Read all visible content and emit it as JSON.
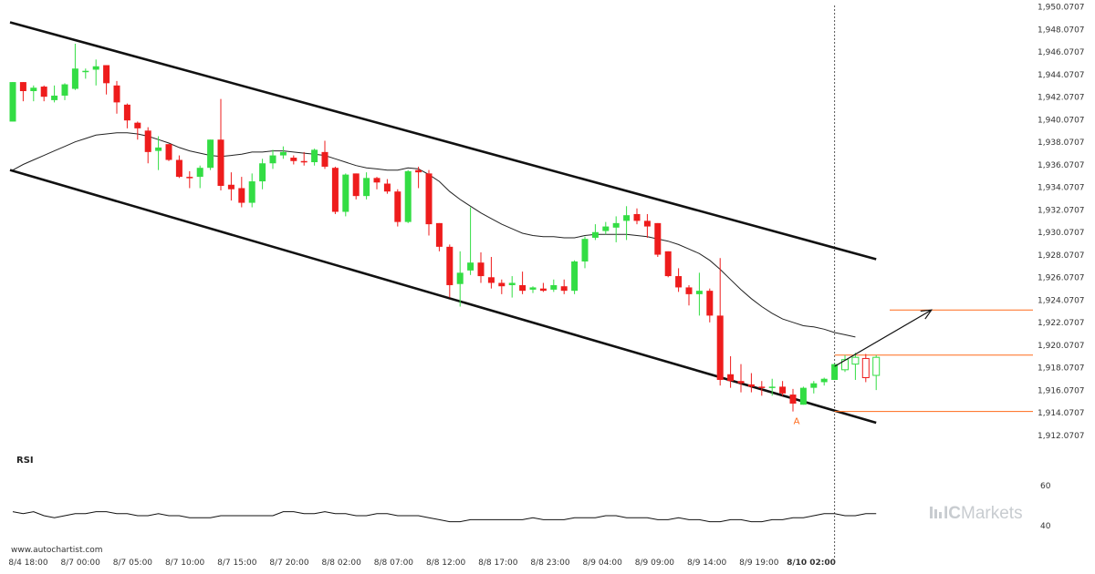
{
  "chart_data": {
    "type": "candlestick",
    "source": "www.autochartist.com",
    "brand": "ICMarkets",
    "price_axis": {
      "range": [
        1911.0,
        1951.0
      ],
      "ticks": [
        "1,912.0707",
        "1,914.0707",
        "1,916.0707",
        "1,918.0707",
        "1,920.0707",
        "1,922.0707",
        "1,924.0707",
        "1,926.0707",
        "1,928.0707",
        "1,930.0707",
        "1,932.0707",
        "1,934.0707",
        "1,936.0707",
        "1,938.0707",
        "1,940.0707",
        "1,942.0707",
        "1,944.0707",
        "1,946.0707",
        "1,948.0707",
        "1,950.0707"
      ]
    },
    "time_axis": {
      "labels": [
        "8/4 18:00",
        "8/7 00:00",
        "8/7 05:00",
        "8/7 10:00",
        "8/7 15:00",
        "8/7 20:00",
        "8/8 02:00",
        "8/8 07:00",
        "8/8 12:00",
        "8/8 17:00",
        "8/8 23:00",
        "8/9 04:00",
        "8/9 09:00",
        "8/9 14:00",
        "8/9 19:00",
        "8/10 02:00"
      ],
      "highlighted": "8/10 02:00"
    },
    "candles": [
      {
        "o": 1939.9,
        "h": 1943.4,
        "l": 1939.9,
        "c": 1943.4
      },
      {
        "o": 1943.4,
        "h": 1943.4,
        "l": 1941.7,
        "c": 1942.6
      },
      {
        "o": 1942.6,
        "h": 1943.1,
        "l": 1941.7,
        "c": 1942.9
      },
      {
        "o": 1943.0,
        "h": 1943.1,
        "l": 1941.7,
        "c": 1942.1
      },
      {
        "o": 1941.8,
        "h": 1943.1,
        "l": 1941.6,
        "c": 1942.2
      },
      {
        "o": 1942.2,
        "h": 1943.3,
        "l": 1941.8,
        "c": 1943.2
      },
      {
        "o": 1942.8,
        "h": 1946.8,
        "l": 1942.7,
        "c": 1944.6
      },
      {
        "o": 1944.4,
        "h": 1944.6,
        "l": 1943.7,
        "c": 1944.4
      },
      {
        "o": 1944.5,
        "h": 1945.4,
        "l": 1943.1,
        "c": 1944.8
      },
      {
        "o": 1944.9,
        "h": 1944.9,
        "l": 1942.3,
        "c": 1943.3
      },
      {
        "o": 1943.1,
        "h": 1943.5,
        "l": 1940.6,
        "c": 1941.6
      },
      {
        "o": 1941.4,
        "h": 1941.5,
        "l": 1939.3,
        "c": 1940.0
      },
      {
        "o": 1939.8,
        "h": 1939.9,
        "l": 1938.3,
        "c": 1939.3
      },
      {
        "o": 1939.1,
        "h": 1939.4,
        "l": 1936.2,
        "c": 1937.2
      },
      {
        "o": 1937.3,
        "h": 1938.6,
        "l": 1935.6,
        "c": 1937.6
      },
      {
        "o": 1937.9,
        "h": 1937.9,
        "l": 1936.4,
        "c": 1936.5
      },
      {
        "o": 1936.5,
        "h": 1936.9,
        "l": 1934.9,
        "c": 1935.0
      },
      {
        "o": 1935.0,
        "h": 1935.5,
        "l": 1934.0,
        "c": 1934.9
      },
      {
        "o": 1935.0,
        "h": 1936.0,
        "l": 1934.0,
        "c": 1935.8
      },
      {
        "o": 1935.8,
        "h": 1938.3,
        "l": 1935.6,
        "c": 1938.3
      },
      {
        "o": 1938.3,
        "h": 1941.9,
        "l": 1933.8,
        "c": 1934.2
      },
      {
        "o": 1934.3,
        "h": 1935.4,
        "l": 1932.9,
        "c": 1933.9
      },
      {
        "o": 1934.0,
        "h": 1935.0,
        "l": 1932.3,
        "c": 1932.7
      },
      {
        "o": 1932.7,
        "h": 1935.3,
        "l": 1932.3,
        "c": 1934.6
      },
      {
        "o": 1934.6,
        "h": 1936.6,
        "l": 1933.9,
        "c": 1936.2
      },
      {
        "o": 1936.2,
        "h": 1937.4,
        "l": 1935.7,
        "c": 1936.9
      },
      {
        "o": 1936.9,
        "h": 1937.7,
        "l": 1936.6,
        "c": 1937.2
      },
      {
        "o": 1936.7,
        "h": 1936.9,
        "l": 1936.1,
        "c": 1936.4
      },
      {
        "o": 1936.4,
        "h": 1937.2,
        "l": 1936.0,
        "c": 1936.3
      },
      {
        "o": 1936.3,
        "h": 1937.5,
        "l": 1936.0,
        "c": 1937.4
      },
      {
        "o": 1937.2,
        "h": 1938.2,
        "l": 1935.7,
        "c": 1935.9
      },
      {
        "o": 1935.8,
        "h": 1935.9,
        "l": 1931.7,
        "c": 1931.9
      },
      {
        "o": 1931.9,
        "h": 1935.3,
        "l": 1931.5,
        "c": 1935.2
      },
      {
        "o": 1935.3,
        "h": 1935.3,
        "l": 1933.0,
        "c": 1933.3
      },
      {
        "o": 1933.3,
        "h": 1935.4,
        "l": 1933.0,
        "c": 1934.9
      },
      {
        "o": 1934.9,
        "h": 1935.0,
        "l": 1933.9,
        "c": 1934.5
      },
      {
        "o": 1934.4,
        "h": 1934.8,
        "l": 1933.5,
        "c": 1933.7
      },
      {
        "o": 1933.7,
        "h": 1933.9,
        "l": 1930.6,
        "c": 1931.0
      },
      {
        "o": 1931.0,
        "h": 1935.6,
        "l": 1930.9,
        "c": 1935.5
      },
      {
        "o": 1935.6,
        "h": 1935.9,
        "l": 1934.0,
        "c": 1935.4
      },
      {
        "o": 1935.3,
        "h": 1935.6,
        "l": 1929.8,
        "c": 1930.8
      },
      {
        "o": 1930.9,
        "h": 1930.9,
        "l": 1928.4,
        "c": 1928.8
      },
      {
        "o": 1928.8,
        "h": 1929.0,
        "l": 1924.3,
        "c": 1925.4
      },
      {
        "o": 1925.5,
        "h": 1928.4,
        "l": 1923.5,
        "c": 1926.5
      },
      {
        "o": 1926.7,
        "h": 1932.3,
        "l": 1926.3,
        "c": 1927.4
      },
      {
        "o": 1927.4,
        "h": 1928.3,
        "l": 1925.6,
        "c": 1926.2
      },
      {
        "o": 1926.1,
        "h": 1927.9,
        "l": 1925.1,
        "c": 1925.6
      },
      {
        "o": 1925.6,
        "h": 1925.9,
        "l": 1924.6,
        "c": 1925.3
      },
      {
        "o": 1925.4,
        "h": 1926.2,
        "l": 1924.3,
        "c": 1925.6
      },
      {
        "o": 1925.4,
        "h": 1926.6,
        "l": 1924.6,
        "c": 1924.9
      },
      {
        "o": 1925.0,
        "h": 1925.3,
        "l": 1924.7,
        "c": 1925.2
      },
      {
        "o": 1925.1,
        "h": 1925.6,
        "l": 1924.8,
        "c": 1924.9
      },
      {
        "o": 1925.0,
        "h": 1925.9,
        "l": 1924.8,
        "c": 1925.4
      },
      {
        "o": 1925.3,
        "h": 1925.9,
        "l": 1924.6,
        "c": 1924.9
      },
      {
        "o": 1924.9,
        "h": 1927.6,
        "l": 1924.6,
        "c": 1927.5
      },
      {
        "o": 1927.5,
        "h": 1929.7,
        "l": 1926.9,
        "c": 1929.5
      },
      {
        "o": 1929.6,
        "h": 1930.8,
        "l": 1929.4,
        "c": 1930.1
      },
      {
        "o": 1930.2,
        "h": 1931.0,
        "l": 1929.9,
        "c": 1930.6
      },
      {
        "o": 1930.5,
        "h": 1931.5,
        "l": 1929.2,
        "c": 1930.9
      },
      {
        "o": 1931.1,
        "h": 1932.4,
        "l": 1929.4,
        "c": 1931.6
      },
      {
        "o": 1931.7,
        "h": 1932.2,
        "l": 1930.8,
        "c": 1931.1
      },
      {
        "o": 1931.1,
        "h": 1931.7,
        "l": 1929.6,
        "c": 1930.6
      },
      {
        "o": 1930.9,
        "h": 1930.9,
        "l": 1927.9,
        "c": 1928.1
      },
      {
        "o": 1928.4,
        "h": 1928.4,
        "l": 1926.1,
        "c": 1926.2
      },
      {
        "o": 1926.2,
        "h": 1926.9,
        "l": 1924.8,
        "c": 1925.2
      },
      {
        "o": 1925.2,
        "h": 1925.4,
        "l": 1923.6,
        "c": 1924.6
      },
      {
        "o": 1924.6,
        "h": 1926.5,
        "l": 1922.7,
        "c": 1924.9
      },
      {
        "o": 1924.9,
        "h": 1925.1,
        "l": 1922.1,
        "c": 1922.7
      },
      {
        "o": 1922.7,
        "h": 1927.8,
        "l": 1916.5,
        "c": 1917.0
      },
      {
        "o": 1917.5,
        "h": 1919.1,
        "l": 1916.3,
        "c": 1916.9
      },
      {
        "o": 1916.9,
        "h": 1918.4,
        "l": 1915.9,
        "c": 1916.7
      },
      {
        "o": 1916.6,
        "h": 1917.6,
        "l": 1915.9,
        "c": 1916.4
      },
      {
        "o": 1916.4,
        "h": 1916.9,
        "l": 1915.6,
        "c": 1916.3
      },
      {
        "o": 1916.3,
        "h": 1917.1,
        "l": 1915.6,
        "c": 1916.4
      },
      {
        "o": 1916.4,
        "h": 1916.9,
        "l": 1915.6,
        "c": 1915.8
      },
      {
        "o": 1915.7,
        "h": 1916.2,
        "l": 1914.2,
        "c": 1914.9
      },
      {
        "o": 1914.8,
        "h": 1916.4,
        "l": 1914.8,
        "c": 1916.3
      },
      {
        "o": 1916.3,
        "h": 1916.9,
        "l": 1915.8,
        "c": 1916.7
      },
      {
        "o": 1916.8,
        "h": 1917.2,
        "l": 1916.5,
        "c": 1917.1
      },
      {
        "o": 1917.0,
        "h": 1918.4,
        "l": 1917.0,
        "c": 1918.4
      }
    ],
    "projection_candles": [
      {
        "o": 1917.9,
        "h": 1919.2,
        "l": 1917.7,
        "c": 1918.8
      },
      {
        "o": 1918.4,
        "h": 1919.4,
        "l": 1917.0,
        "c": 1919.0
      },
      {
        "o": 1918.9,
        "h": 1919.3,
        "l": 1916.8,
        "c": 1917.2
      },
      {
        "o": 1917.4,
        "h": 1919.2,
        "l": 1916.1,
        "c": 1919.0
      }
    ],
    "moving_average": [
      1935.6,
      1936.1,
      1936.5,
      1936.9,
      1937.3,
      1937.7,
      1938.1,
      1938.4,
      1938.7,
      1938.8,
      1938.9,
      1938.9,
      1938.8,
      1938.6,
      1938.3,
      1938.0,
      1937.6,
      1937.3,
      1937.1,
      1936.9,
      1936.8,
      1936.9,
      1937.0,
      1937.2,
      1937.2,
      1937.3,
      1937.3,
      1937.2,
      1937.1,
      1937.0,
      1936.9,
      1936.6,
      1936.3,
      1936.0,
      1935.8,
      1935.7,
      1935.6,
      1935.6,
      1935.8,
      1935.7,
      1935.2,
      1934.6,
      1933.7,
      1933.0,
      1932.4,
      1931.8,
      1931.3,
      1930.8,
      1930.4,
      1930.0,
      1929.8,
      1929.7,
      1929.7,
      1929.6,
      1929.6,
      1929.8,
      1929.9,
      1929.9,
      1929.9,
      1929.9,
      1929.8,
      1929.7,
      1929.5,
      1929.3,
      1929.0,
      1928.6,
      1928.2,
      1927.6,
      1926.8,
      1925.9,
      1925.0,
      1924.2,
      1923.5,
      1922.9,
      1922.4,
      1922.1,
      1921.8,
      1921.7,
      1921.5,
      1921.2,
      1921.0,
      1920.8
    ],
    "channel": {
      "upper": [
        [
          0,
          1948.7
        ],
        [
          83,
          1927.7
        ]
      ],
      "lower": [
        [
          0,
          1935.6
        ],
        [
          83,
          1913.2
        ]
      ]
    },
    "levels": [
      1919.2,
      1914.2
    ],
    "target_level": 1923.2,
    "forecast_arrow": [
      [
        79,
        1918.2
      ],
      [
        87,
        1923.2
      ]
    ],
    "current_bar_index": 79,
    "pattern_label": "A",
    "rsi": {
      "label": "RSI",
      "ticks": [
        "60",
        "40"
      ],
      "range": [
        40,
        60
      ],
      "values": [
        47,
        46,
        47,
        45,
        44,
        45,
        46,
        46,
        47,
        47,
        46,
        46,
        45,
        45,
        46,
        45,
        45,
        44,
        44,
        44,
        45,
        45,
        45,
        45,
        45,
        45,
        47,
        47,
        46,
        46,
        47,
        46,
        46,
        45,
        45,
        46,
        46,
        45,
        45,
        45,
        44,
        43,
        42,
        42,
        43,
        43,
        43,
        43,
        43,
        43,
        44,
        43,
        43,
        43,
        44,
        44,
        44,
        45,
        45,
        44,
        44,
        44,
        43,
        43,
        44,
        43,
        43,
        42,
        42,
        43,
        43,
        42,
        42,
        43,
        43,
        44,
        44,
        45,
        46,
        46,
        45,
        45,
        46,
        46
      ]
    },
    "colors": {
      "bull": "#33dd44",
      "bear": "#ee1c1c",
      "channel": "#111111",
      "level": "#ff6a1a",
      "moving_average": "#222222",
      "axis_text": "#333333"
    }
  }
}
